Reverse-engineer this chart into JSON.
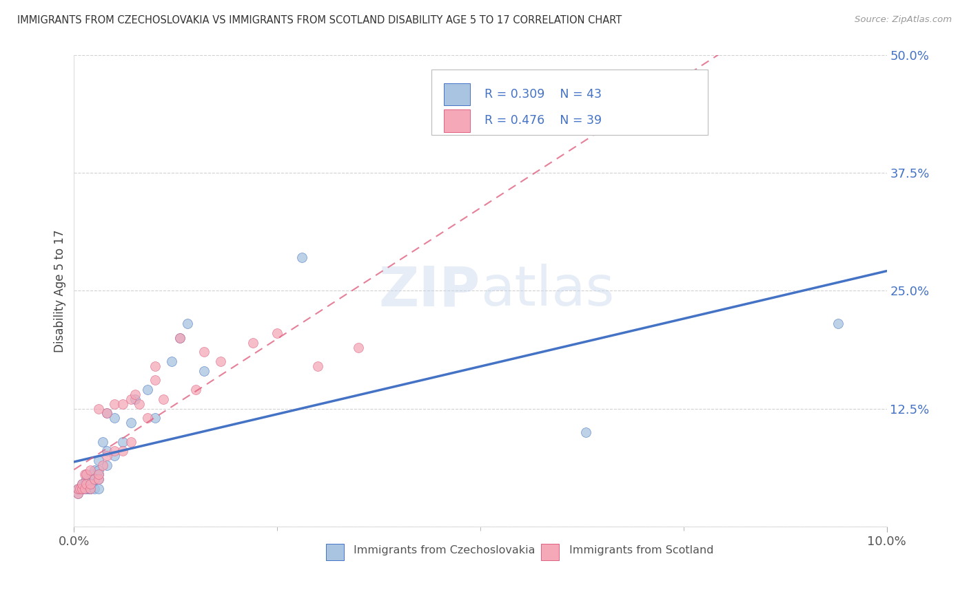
{
  "title": "IMMIGRANTS FROM CZECHOSLOVAKIA VS IMMIGRANTS FROM SCOTLAND DISABILITY AGE 5 TO 17 CORRELATION CHART",
  "source": "Source: ZipAtlas.com",
  "ylabel": "Disability Age 5 to 17",
  "xlim": [
    0.0,
    0.1
  ],
  "ylim": [
    0.0,
    0.5
  ],
  "y_ticks": [
    0.0,
    0.125,
    0.25,
    0.375,
    0.5
  ],
  "y_tick_labels": [
    "",
    "12.5%",
    "25.0%",
    "37.5%",
    "50.0%"
  ],
  "legend1_r": "0.309",
  "legend1_n": "43",
  "legend2_r": "0.476",
  "legend2_n": "39",
  "color_czech": "#a8c4e0",
  "color_scotland": "#f4a8b8",
  "line_color_czech": "#4472c4",
  "line_color_scotland": "#e06080",
  "background_color": "#ffffff",
  "czech_x": [
    0.0005,
    0.0005,
    0.0007,
    0.001,
    0.001,
    0.001,
    0.0013,
    0.0013,
    0.0015,
    0.0015,
    0.0015,
    0.0018,
    0.002,
    0.002,
    0.002,
    0.002,
    0.0022,
    0.0022,
    0.0025,
    0.0025,
    0.003,
    0.003,
    0.003,
    0.003,
    0.003,
    0.0035,
    0.004,
    0.004,
    0.004,
    0.005,
    0.005,
    0.006,
    0.007,
    0.0075,
    0.009,
    0.01,
    0.012,
    0.013,
    0.014,
    0.016,
    0.028,
    0.063,
    0.094
  ],
  "czech_y": [
    0.035,
    0.04,
    0.04,
    0.04,
    0.04,
    0.045,
    0.04,
    0.045,
    0.04,
    0.05,
    0.055,
    0.04,
    0.04,
    0.04,
    0.045,
    0.05,
    0.045,
    0.055,
    0.04,
    0.06,
    0.04,
    0.05,
    0.055,
    0.06,
    0.07,
    0.09,
    0.065,
    0.08,
    0.12,
    0.075,
    0.115,
    0.09,
    0.11,
    0.135,
    0.145,
    0.115,
    0.175,
    0.2,
    0.215,
    0.165,
    0.285,
    0.1,
    0.215
  ],
  "scotland_x": [
    0.0005,
    0.0005,
    0.0007,
    0.001,
    0.001,
    0.0013,
    0.0013,
    0.0015,
    0.0015,
    0.002,
    0.002,
    0.002,
    0.0025,
    0.003,
    0.003,
    0.003,
    0.0035,
    0.004,
    0.004,
    0.005,
    0.005,
    0.006,
    0.006,
    0.007,
    0.007,
    0.0075,
    0.008,
    0.009,
    0.01,
    0.01,
    0.011,
    0.013,
    0.015,
    0.016,
    0.018,
    0.022,
    0.025,
    0.03,
    0.035
  ],
  "scotland_y": [
    0.035,
    0.04,
    0.04,
    0.04,
    0.045,
    0.04,
    0.055,
    0.045,
    0.055,
    0.04,
    0.045,
    0.06,
    0.05,
    0.05,
    0.055,
    0.125,
    0.065,
    0.075,
    0.12,
    0.08,
    0.13,
    0.08,
    0.13,
    0.09,
    0.135,
    0.14,
    0.13,
    0.115,
    0.155,
    0.17,
    0.135,
    0.2,
    0.145,
    0.185,
    0.175,
    0.195,
    0.205,
    0.17,
    0.19
  ]
}
